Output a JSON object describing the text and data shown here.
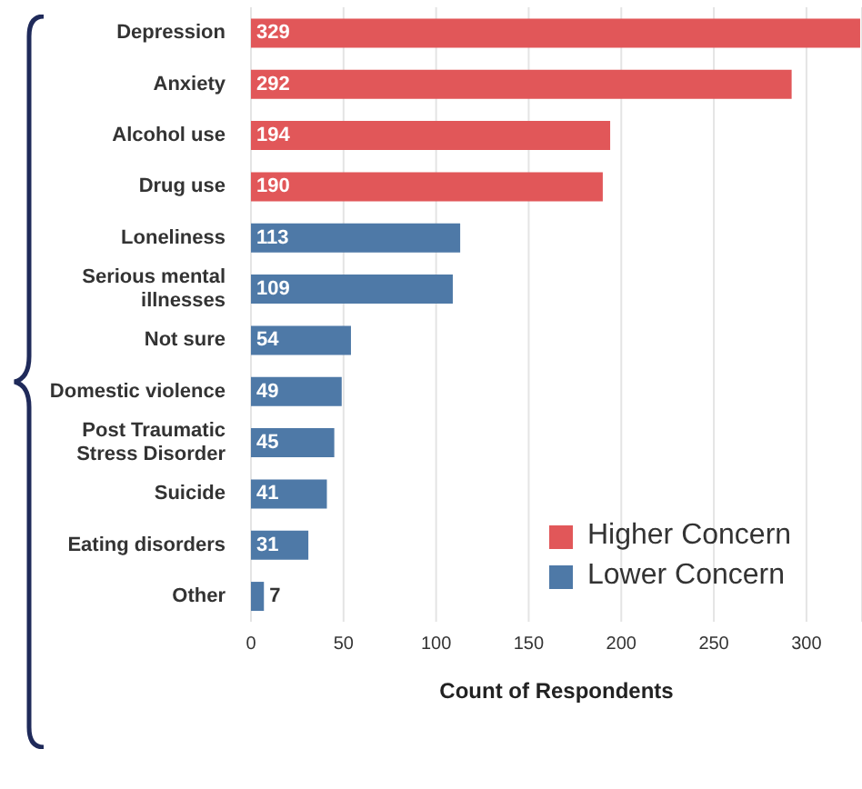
{
  "chart_data": {
    "type": "bar",
    "orientation": "horizontal",
    "stacked": true,
    "xlabel": "Count of Respondents",
    "categories": [
      "Depression",
      "Anxiety",
      "Alcohol use",
      "Drug use",
      "Loneliness",
      "Serious mental illnesses",
      "Not sure",
      "Domestic violence",
      "Post Traumatic Stress Disorder",
      "Suicide",
      "Eating disorders",
      "Other"
    ],
    "series": [
      {
        "name": "Higher Concern",
        "color": "#e15759",
        "values": [
          329,
          292,
          194,
          190,
          null,
          null,
          null,
          null,
          null,
          null,
          null,
          null
        ]
      },
      {
        "name": "Lower Concern",
        "color": "#4e79a7",
        "values": [
          null,
          null,
          null,
          null,
          113,
          109,
          54,
          49,
          45,
          41,
          31,
          7
        ]
      }
    ],
    "xlim": [
      0,
      330
    ],
    "xticks": [
      0,
      50,
      100,
      150,
      200,
      250,
      300
    ],
    "grid": "x",
    "legend": "bottom right",
    "data_labels": true
  }
}
